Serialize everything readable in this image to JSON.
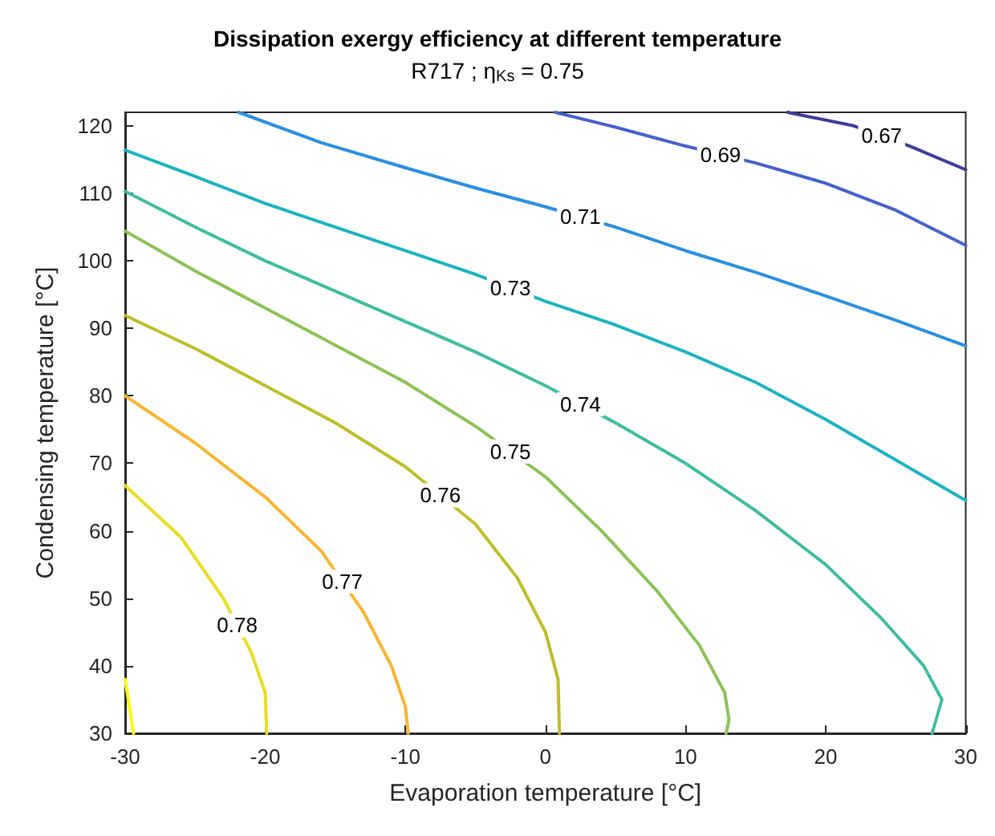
{
  "chart_data": {
    "type": "line",
    "title": "Dissipation exergy efficiency at different temperature",
    "subtitle": "R717 ; η$_{Ks}$ = 0.75",
    "xlabel": "Evaporation temperature [°C]",
    "ylabel": "Condensing temperature [°C]",
    "xlim": [
      -30,
      30
    ],
    "xticks": [
      -30,
      -20,
      -10,
      0,
      10,
      20,
      30
    ],
    "ylim": [
      30,
      122
    ],
    "yticks": [
      30,
      40,
      50,
      60,
      70,
      80,
      90,
      100,
      110,
      120
    ],
    "grid": false,
    "legend": false,
    "marker": "none",
    "line_style": "solid",
    "series": [
      {
        "name": "0.67",
        "color": "#3e3b98",
        "x": [
          17.3,
          22,
          26,
          30
        ],
        "values": [
          122,
          120,
          117,
          113.5
        ]
      },
      {
        "name": "0.69",
        "color": "#4760c8",
        "x": [
          0.7,
          5,
          10,
          15,
          20,
          25,
          30
        ],
        "values": [
          122,
          119.8,
          117,
          114.5,
          111.5,
          107.5,
          102.3
        ]
      },
      {
        "name": "0.71",
        "color": "#2d8fdc",
        "x": [
          -21.9,
          -16,
          -10,
          -5,
          0,
          5,
          10,
          15,
          20,
          25,
          30
        ],
        "values": [
          122,
          117.5,
          113.8,
          110.8,
          108,
          105,
          101.5,
          98.3,
          94.8,
          91.2,
          87.4
        ]
      },
      {
        "name": "0.73",
        "color": "#1fb2c0",
        "x": [
          -30,
          -25,
          -20,
          -15,
          -10,
          -5,
          0,
          5,
          10,
          15,
          20,
          25,
          30
        ],
        "values": [
          116.4,
          112.5,
          108.5,
          105,
          101.5,
          98,
          94,
          90.5,
          86.5,
          82,
          76.5,
          70.5,
          64.5
        ]
      },
      {
        "name": "0.74",
        "color": "#42bca0",
        "x": [
          -30,
          -25,
          -20,
          -15,
          -10,
          -5,
          0,
          5,
          10,
          15,
          20,
          24,
          27,
          28.3,
          27.6
        ],
        "values": [
          110.3,
          105,
          100,
          95.5,
          91,
          86.5,
          81.5,
          76,
          70,
          63,
          55,
          47,
          40,
          35,
          30
        ]
      },
      {
        "name": "0.75",
        "color": "#8cc258",
        "x": [
          -30,
          -25,
          -20,
          -15,
          -10,
          -5,
          0,
          4,
          8,
          11,
          12.8,
          13.1,
          12.9
        ],
        "values": [
          104.4,
          98.5,
          93,
          87.5,
          82,
          75.5,
          68,
          60,
          51,
          43,
          36,
          32,
          30
        ]
      },
      {
        "name": "0.76",
        "color": "#bdbe2c",
        "x": [
          -30,
          -25,
          -20,
          -15,
          -10,
          -5,
          -2,
          0,
          0.9,
          1
        ],
        "values": [
          91.9,
          87,
          81.5,
          76,
          69.5,
          61,
          53,
          45,
          38,
          30
        ]
      },
      {
        "name": "0.77",
        "color": "#f6b533",
        "x": [
          -30,
          -25,
          -20,
          -16,
          -13,
          -11,
          -10,
          -9.8
        ],
        "values": [
          80,
          73,
          65,
          57,
          48,
          40,
          34,
          30
        ]
      },
      {
        "name": "0.78",
        "color": "#e8dd26",
        "x": [
          -30,
          -26,
          -23,
          -21,
          -20,
          -19.9
        ],
        "values": [
          66.7,
          59,
          50,
          42,
          36,
          30
        ]
      },
      {
        "color": "#f9f90f",
        "x": [
          -30,
          -29.7,
          -29.4
        ],
        "values": [
          38,
          34,
          30
        ]
      }
    ]
  }
}
